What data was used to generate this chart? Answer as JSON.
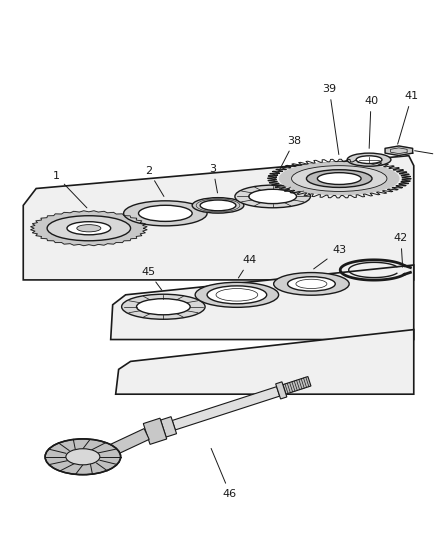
{
  "bg_color": "#ffffff",
  "line_color": "#1a1a1a",
  "figsize": [
    4.39,
    5.33
  ],
  "dpi": 100
}
